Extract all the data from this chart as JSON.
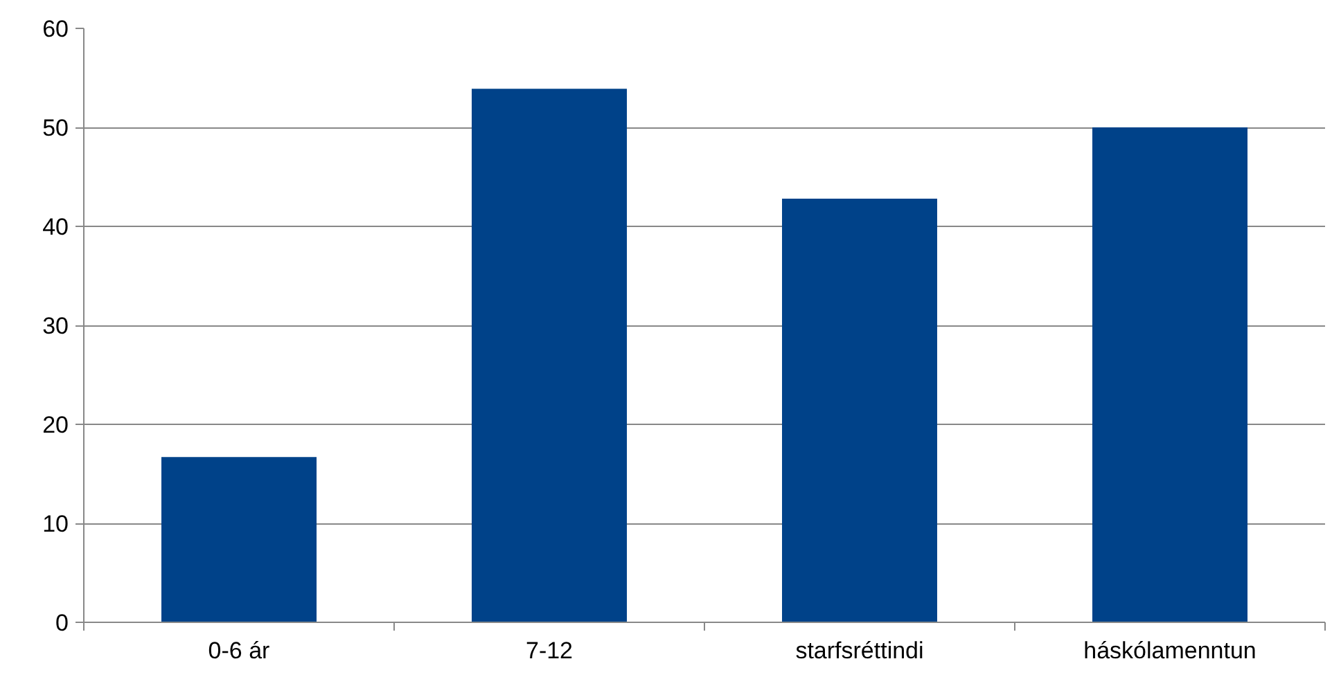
{
  "chart_data": {
    "type": "bar",
    "categories": [
      "0-6 ár",
      "7-12",
      "starfsréttindi",
      "háskólamenntun"
    ],
    "values": [
      16.7,
      53.9,
      42.8,
      50
    ],
    "color": "#004289",
    "ylim": [
      0,
      60
    ],
    "yticks": [
      0,
      10,
      20,
      30,
      40,
      50,
      60
    ],
    "grid": "y"
  }
}
